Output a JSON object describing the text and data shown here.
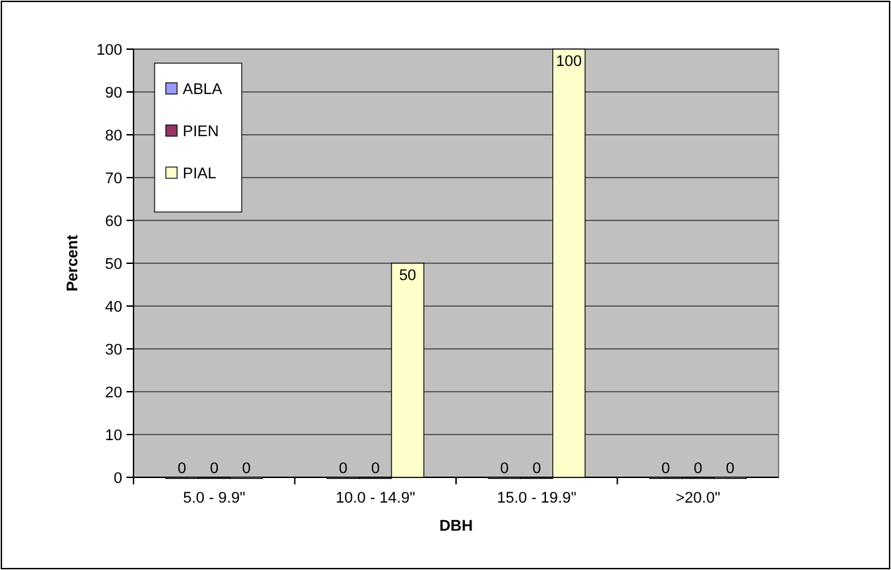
{
  "chart_data": {
    "type": "bar",
    "xlabel": "DBH",
    "ylabel": "Percent",
    "categories": [
      "5.0 - 9.9\"",
      "10.0 - 14.9\"",
      "15.0 - 19.9\"",
      ">20.0\""
    ],
    "series": [
      {
        "name": "ABLA",
        "color": "#9999ff",
        "values": [
          0,
          0,
          0,
          0
        ]
      },
      {
        "name": "PIEN",
        "color": "#993366",
        "values": [
          0,
          0,
          0,
          0
        ]
      },
      {
        "name": "PIAL",
        "color": "#ffffcc",
        "values": [
          0,
          50,
          100,
          0
        ]
      }
    ],
    "ylim": [
      0,
      100
    ],
    "yticks": [
      0,
      10,
      20,
      30,
      40,
      50,
      60,
      70,
      80,
      90,
      100
    ],
    "grid": "y",
    "legend": "top left",
    "data_labels": true
  }
}
